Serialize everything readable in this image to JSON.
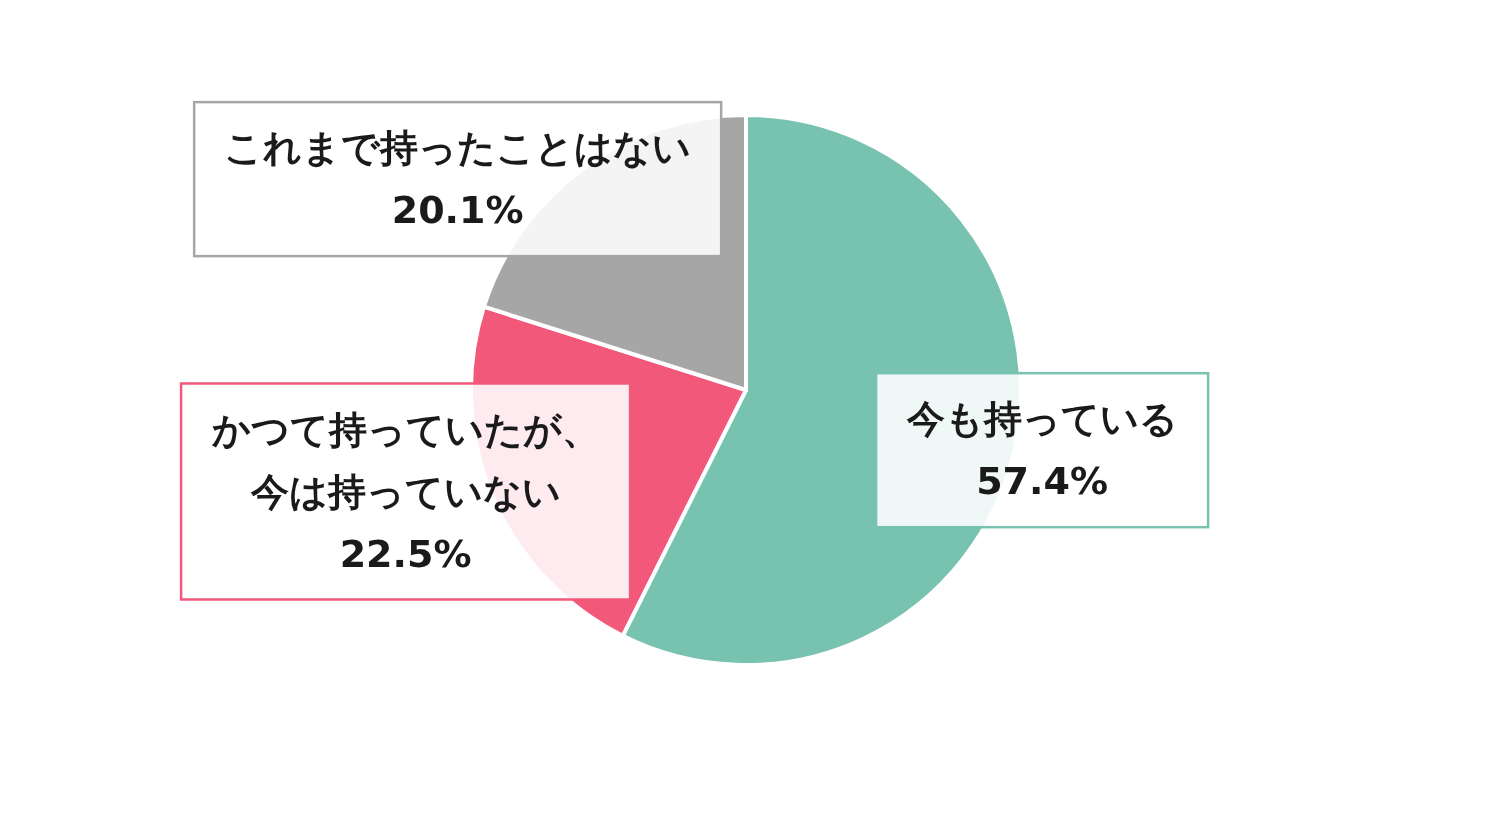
{
  "chart_data": {
    "type": "pie",
    "categories": [
      "今も持っている",
      "かつて持っていたが、今は持っていない",
      "これまで持ったことはない"
    ],
    "values": [
      57.4,
      22.5,
      20.1
    ],
    "colors": [
      "#78c3b0",
      "#f2587a",
      "#a6a6a6"
    ],
    "value_labels": [
      "57.4%",
      "22.5%",
      "20.1%"
    ]
  }
}
